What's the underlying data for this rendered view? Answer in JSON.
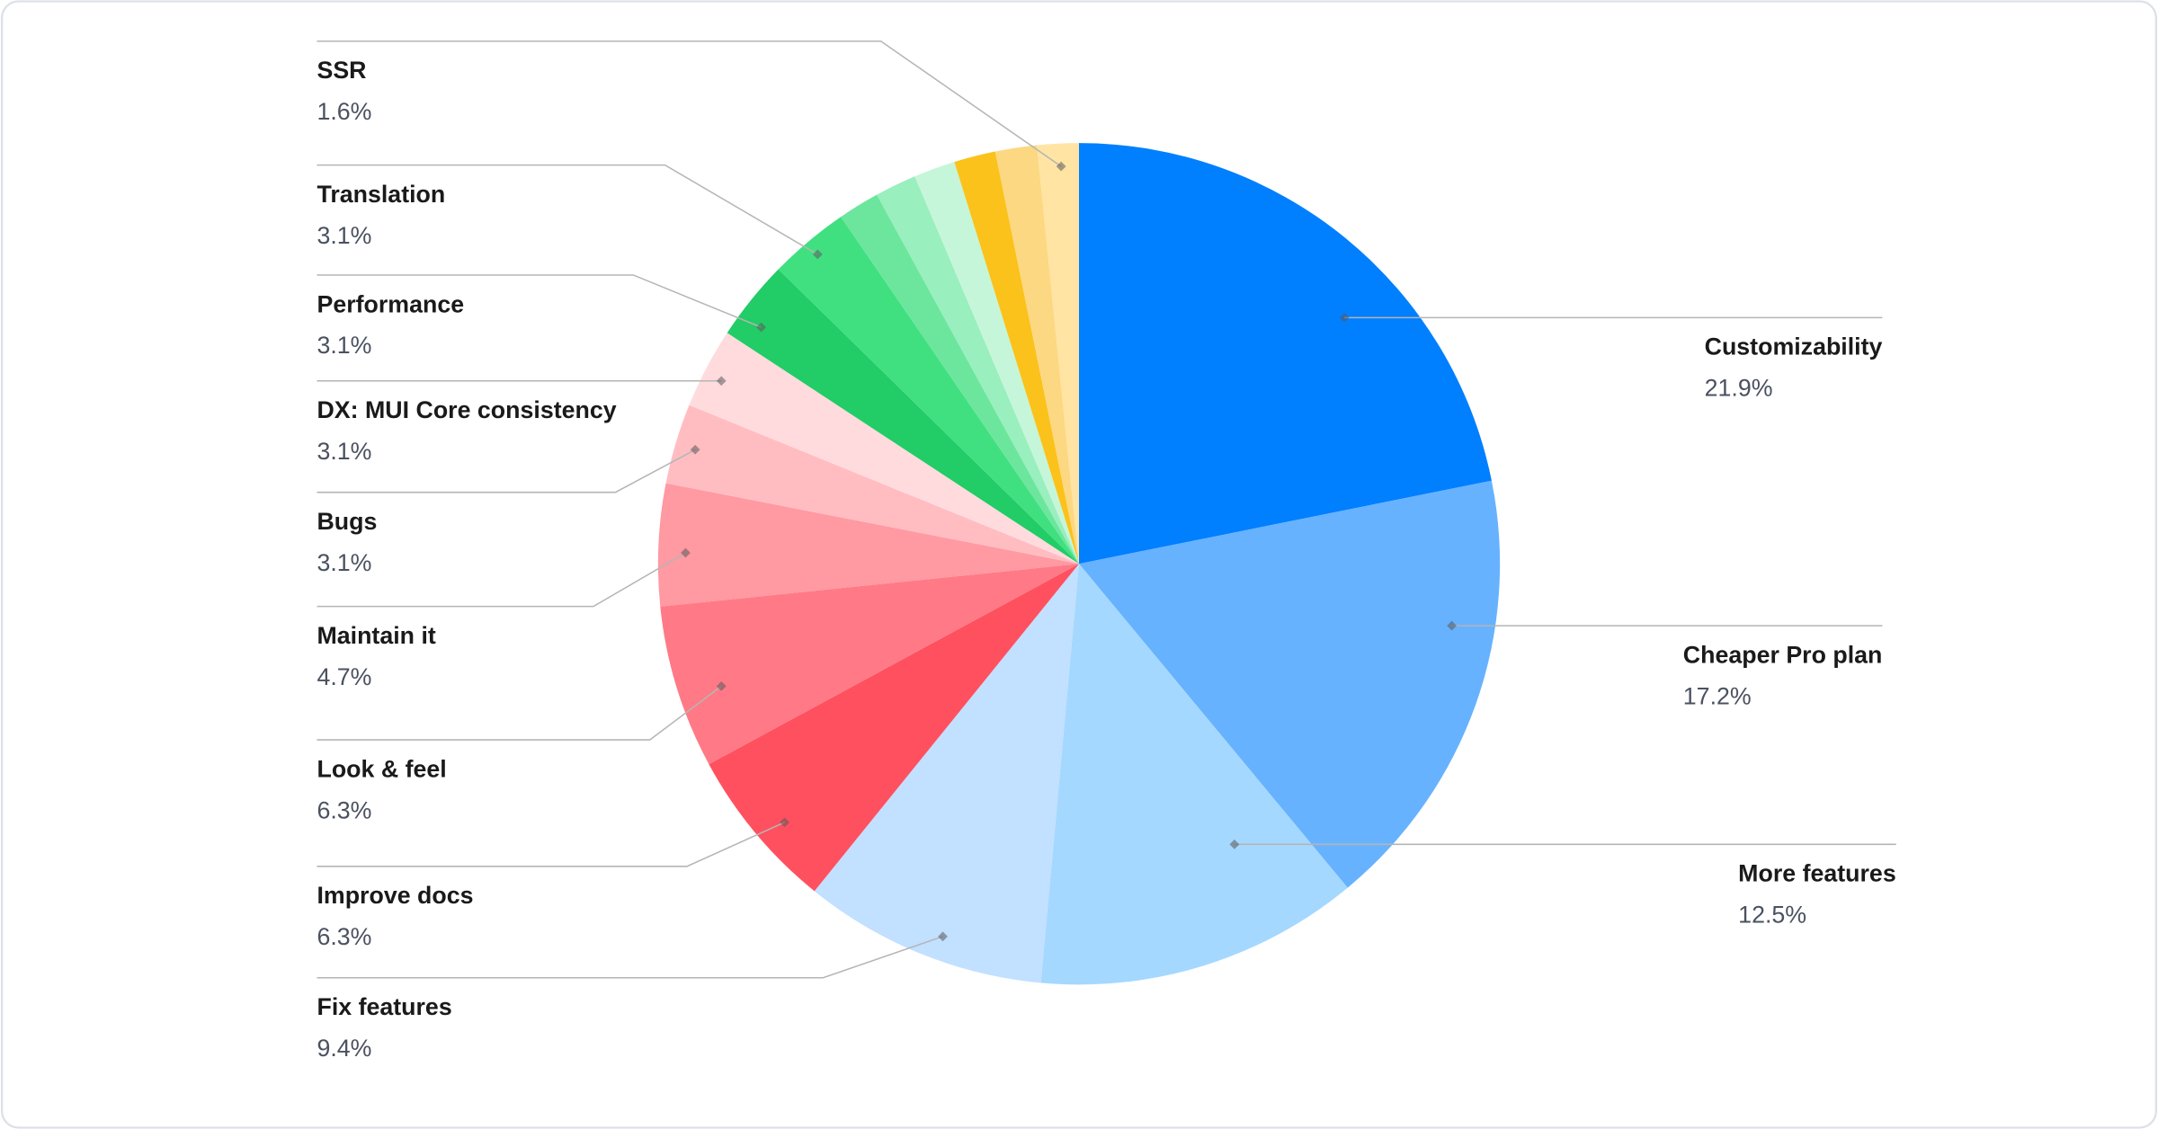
{
  "chart_data": {
    "type": "pie",
    "start_angle": "12 o'clock",
    "direction": "clockwise",
    "unit": "%",
    "slices": [
      {
        "name": "Customizability",
        "value": 21.9,
        "label": "21.9%",
        "color": "#007FFF"
      },
      {
        "name": "Cheaper Pro plan",
        "value": 17.2,
        "label": "17.2%",
        "color": "#66B2FF"
      },
      {
        "name": "More features",
        "value": 12.5,
        "label": "12.5%",
        "color": "#A5D8FF"
      },
      {
        "name": "Fix features",
        "value": 9.4,
        "label": "9.4%",
        "color": "#C2E0FF"
      },
      {
        "name": "Improve docs",
        "value": 6.3,
        "label": "6.3%",
        "color": "#FF505F"
      },
      {
        "name": "Look & feel",
        "value": 6.3,
        "label": "6.3%",
        "color": "#FF7A86"
      },
      {
        "name": "Maintain it",
        "value": 4.7,
        "label": "4.7%",
        "color": "#FF99A2"
      },
      {
        "name": "Bugs",
        "value": 3.1,
        "label": "3.1%",
        "color": "#FFBDC2"
      },
      {
        "name": "DX: MUI Core consistency",
        "value": 3.1,
        "label": "3.1%",
        "color": "#FFDBDE"
      },
      {
        "name": "Performance",
        "value": 3.1,
        "label": "3.1%",
        "color": "#22CC66"
      },
      {
        "name": "Translation",
        "value": 3.1,
        "label": "3.1%",
        "color": "#40E080"
      },
      {
        "value": 1.6,
        "color": "#6CE69D"
      },
      {
        "value": 1.6,
        "color": "#99EFBD"
      },
      {
        "value": 1.6,
        "color": "#C6F6D9"
      },
      {
        "value": 1.6,
        "color": "#FBC21C"
      },
      {
        "value": 1.6,
        "color": "#FDD882"
      },
      {
        "name": "SSR",
        "value": 1.6,
        "label": "1.6%",
        "color": "#FFE4A3"
      }
    ],
    "legend": "none; leader-line labels on left and right"
  }
}
